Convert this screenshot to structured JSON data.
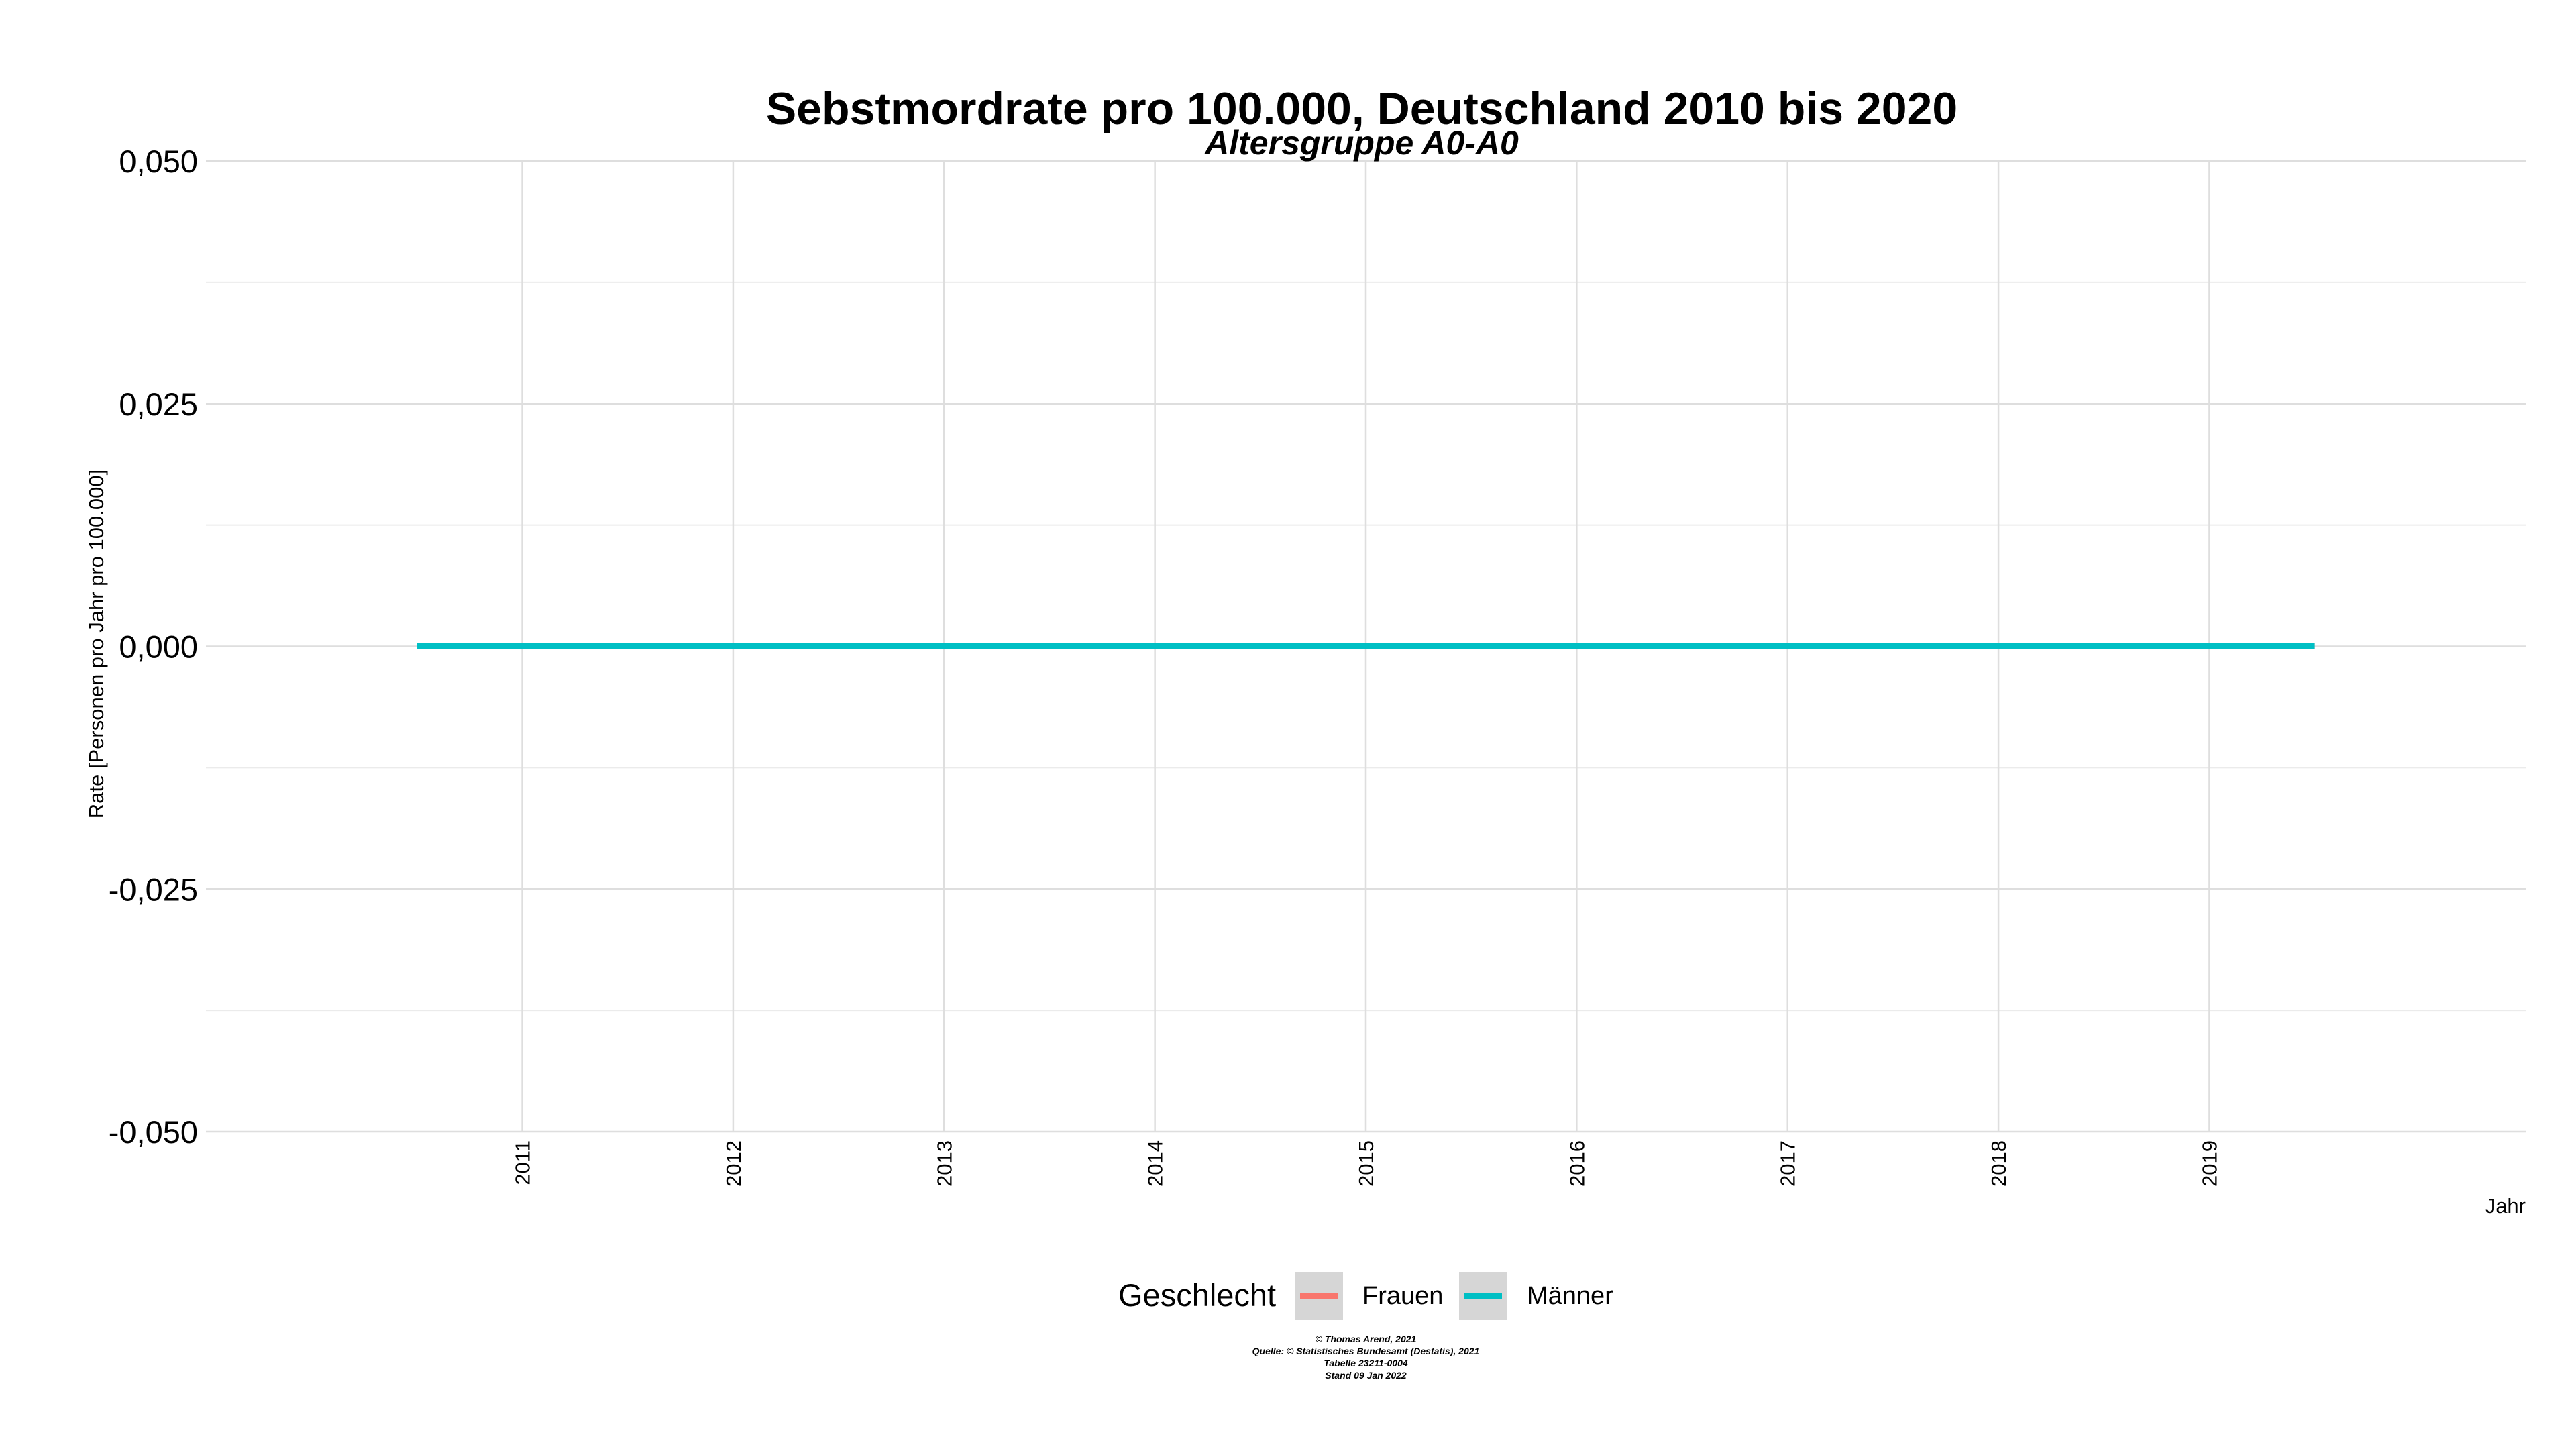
{
  "chart_data": {
    "type": "line",
    "title": "Sebstmordrate pro 100.000, Deutschland  2010 bis 2020",
    "subtitle": "Altersgruppe A0-A0",
    "xlabel": "Jahr",
    "ylabel": "Rate [Personen pro Jahr pro 100.000]",
    "x": [
      2010.5,
      2011,
      2012,
      2013,
      2014,
      2015,
      2016,
      2017,
      2018,
      2019,
      2019.5
    ],
    "xlim": [
      2009.5,
      2020.5
    ],
    "x_ticks": [
      "2011",
      "2012",
      "2013",
      "2014",
      "2015",
      "2016",
      "2017",
      "2018",
      "2019"
    ],
    "ylim": [
      -0.05,
      0.05
    ],
    "y_ticks": [
      "0,050",
      "0,025",
      "0,000",
      "-0,025",
      "-0,050"
    ],
    "series": [
      {
        "name": "Frauen",
        "color": "#F8766D",
        "values": [
          0,
          0,
          0,
          0,
          0,
          0,
          0,
          0,
          0,
          0,
          0
        ]
      },
      {
        "name": "Männer",
        "color": "#00BFC4",
        "values": [
          0,
          0,
          0,
          0,
          0,
          0,
          0,
          0,
          0,
          0,
          0
        ]
      }
    ],
    "legend": {
      "title": "Geschlecht",
      "position": "bottom",
      "items": [
        "Frauen",
        "Männer"
      ]
    },
    "grid": true,
    "caption": [
      "© Thomas Arend, 2021",
      "Quelle: © Statistisches Bundesamt (Destatis), 2021",
      "Tabelle 23211-0004",
      "Stand 09 Jan 2022"
    ]
  }
}
